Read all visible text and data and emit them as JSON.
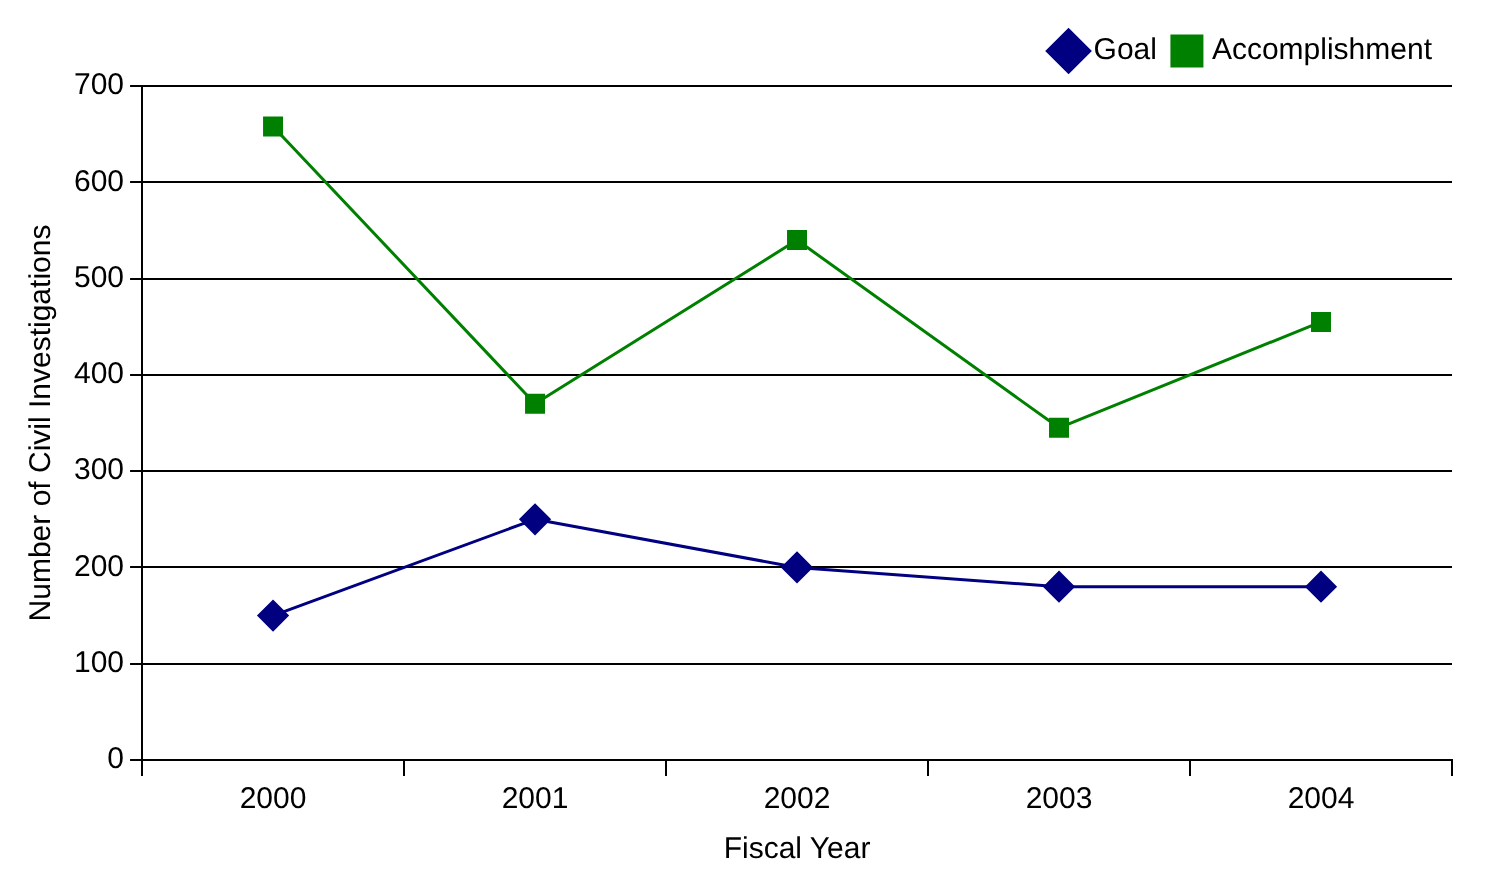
{
  "chart_data": {
    "type": "line",
    "xlabel": "Fiscal Year",
    "ylabel": "Number of Civil Investigations",
    "categories": [
      "2000",
      "2001",
      "2002",
      "2003",
      "2004"
    ],
    "series": [
      {
        "name": "Goal",
        "color": "#000080",
        "values": [
          150,
          250,
          200,
          180,
          180
        ],
        "marker": "diamond"
      },
      {
        "name": "Accomplishment",
        "color": "#008000",
        "values": [
          658,
          370,
          540,
          345,
          455
        ],
        "marker": "square"
      }
    ],
    "ylim": [
      0,
      700
    ],
    "yticks": [
      0,
      100,
      200,
      300,
      400,
      500,
      600,
      700
    ],
    "grid": "y",
    "legend": "top right",
    "line_style": "solid"
  }
}
